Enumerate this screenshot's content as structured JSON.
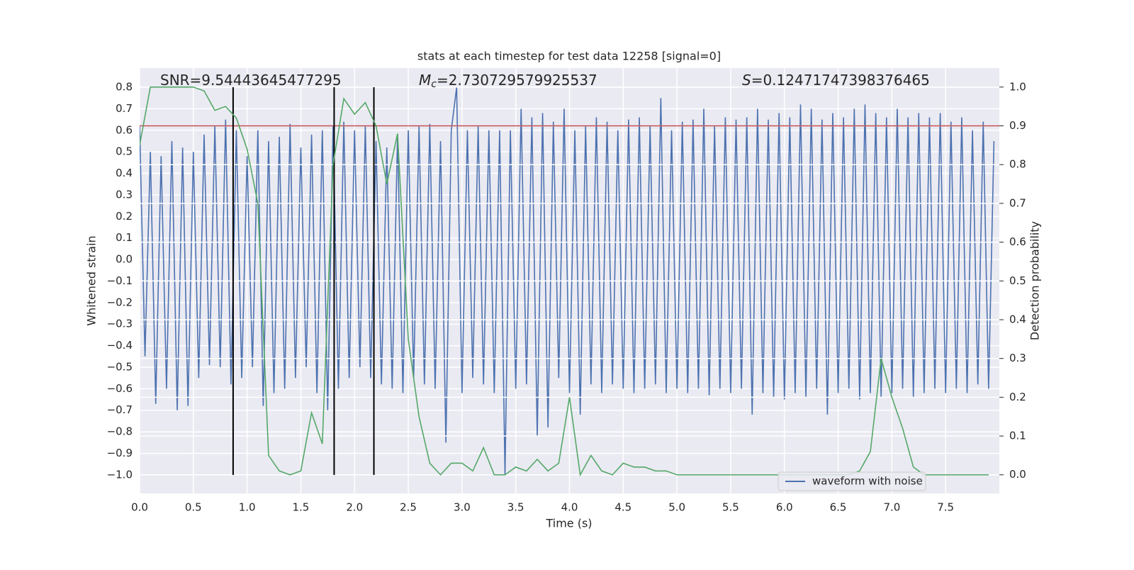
{
  "chart_data": {
    "type": "line",
    "title": "stats at each timestep for test data 12258 [signal=0]",
    "x_label": "Time (s)",
    "y_label": "Whitened strain",
    "y2_label": "Detection probability",
    "annotations": [
      {
        "text": "SNR=9.54443645477295"
      },
      {
        "symbol": "M",
        "subscript": "c",
        "text": "=2.730729579925537"
      },
      {
        "symbol": "S",
        "text": "=0.12471747398376465"
      }
    ],
    "xlim": [
      0,
      8.0
    ],
    "ylim": [
      -1.086,
      0.889
    ],
    "y2lim": [
      -0.048,
      1.049
    ],
    "xticks": [
      {
        "value": 0.0,
        "label": "0.0"
      },
      0.5,
      {
        "value": 1.0,
        "label": "1.0"
      },
      1.5,
      {
        "value": 2.0,
        "label": "2.0"
      },
      2.5,
      {
        "value": 3.0,
        "label": "3.0"
      },
      3.5,
      {
        "value": 4.0,
        "label": "4.0"
      },
      4.5,
      {
        "value": 5.0,
        "label": "5.0"
      },
      5.5,
      {
        "value": 6.0,
        "label": "6.0"
      },
      6.5,
      {
        "value": 7.0,
        "label": "7.0"
      },
      7.5
    ],
    "yticks": [
      {
        "value": -1.0,
        "label": "−1.0"
      },
      {
        "value": -0.9,
        "label": "−0.9"
      },
      {
        "value": -0.8,
        "label": "−0.8"
      },
      {
        "value": -0.7,
        "label": "−0.7"
      },
      {
        "value": -0.6,
        "label": "−0.6"
      },
      {
        "value": -0.5,
        "label": "−0.5"
      },
      {
        "value": -0.4,
        "label": "−0.4"
      },
      {
        "value": -0.3,
        "label": "−0.3"
      },
      {
        "value": -0.2,
        "label": "−0.2"
      },
      {
        "value": -0.1,
        "label": "−0.1"
      },
      {
        "value": 0.0,
        "label": "0.0"
      },
      0.1,
      0.2,
      0.3,
      0.4,
      0.5,
      0.6,
      0.7,
      0.8
    ],
    "y2ticks": [
      {
        "value": 0.0,
        "label": "0.0"
      },
      0.1,
      0.2,
      0.3,
      0.4,
      0.5,
      0.6,
      0.7,
      0.8,
      0.9,
      {
        "value": 1.0,
        "label": "1.0"
      }
    ],
    "grid": true,
    "legend": "lower right",
    "series": [
      {
        "name": "waveform with noise",
        "color": "#4c72b0",
        "x": [
          0,
          0.05,
          0.1,
          0.15,
          0.2,
          0.25,
          0.3,
          0.35,
          0.4,
          0.45,
          0.5,
          0.55,
          0.6,
          0.65,
          0.7,
          0.75,
          0.8,
          0.85,
          0.9,
          0.95,
          1,
          1.05,
          1.1,
          1.15,
          1.2,
          1.25,
          1.3,
          1.35,
          1.4,
          1.45,
          1.5,
          1.55,
          1.6,
          1.65,
          1.7,
          1.75,
          1.8,
          1.85,
          1.9,
          1.95,
          2,
          2.05,
          2.1,
          2.15,
          2.2,
          2.25,
          2.3,
          2.35,
          2.4,
          2.45,
          2.5,
          2.55,
          2.6,
          2.65,
          2.7,
          2.75,
          2.8,
          2.85,
          2.9,
          2.95,
          3,
          3.05,
          3.1,
          3.15,
          3.2,
          3.25,
          3.3,
          3.35,
          3.4,
          3.45,
          3.5,
          3.55,
          3.6,
          3.65,
          3.7,
          3.75,
          3.8,
          3.85,
          3.9,
          3.95,
          4,
          4.05,
          4.1,
          4.15,
          4.2,
          4.25,
          4.3,
          4.35,
          4.4,
          4.45,
          4.5,
          4.55,
          4.6,
          4.65,
          4.7,
          4.75,
          4.8,
          4.85,
          4.9,
          4.95,
          5,
          5.05,
          5.1,
          5.15,
          5.2,
          5.25,
          5.3,
          5.35,
          5.4,
          5.45,
          5.5,
          5.55,
          5.6,
          5.65,
          5.7,
          5.75,
          5.8,
          5.85,
          5.9,
          5.95,
          6,
          6.05,
          6.1,
          6.15,
          6.2,
          6.25,
          6.3,
          6.35,
          6.4,
          6.45,
          6.5,
          6.55,
          6.6,
          6.65,
          6.7,
          6.75,
          6.8,
          6.85,
          6.9,
          6.95,
          7,
          7.05,
          7.1,
          7.15,
          7.2,
          7.25,
          7.3,
          7.35,
          7.4,
          7.45,
          7.5,
          7.55,
          7.6,
          7.65,
          7.7,
          7.75,
          7.8,
          7.85,
          7.9,
          7.95
        ],
        "values": [
          0.62,
          -0.45,
          0.5,
          -0.67,
          0.48,
          -0.6,
          0.55,
          -0.7,
          0.52,
          -0.68,
          0.5,
          -0.55,
          0.58,
          -0.49,
          0.62,
          -0.5,
          0.65,
          -0.58,
          0.6,
          -0.55,
          0.48,
          -0.5,
          0.6,
          -0.68,
          0.55,
          -0.62,
          0.57,
          -0.6,
          0.63,
          -0.55,
          0.52,
          -0.5,
          0.58,
          -0.62,
          0.6,
          -0.7,
          0.62,
          -0.6,
          0.64,
          -0.55,
          0.6,
          -0.5,
          0.62,
          -0.55,
          0.55,
          -0.58,
          0.52,
          -0.6,
          0.58,
          -0.62,
          0.6,
          -0.55,
          0.62,
          -0.58,
          0.63,
          -0.6,
          0.55,
          -0.85,
          0.6,
          0.8,
          -0.62,
          0.6,
          -0.55,
          0.62,
          -0.58,
          0.6,
          -0.62,
          0.6,
          -1.0,
          0.6,
          -0.6,
          0.7,
          -0.58,
          0.66,
          -0.82,
          0.68,
          -0.78,
          0.64,
          -0.55,
          0.7,
          -0.62,
          0.6,
          -0.72,
          0.62,
          -0.58,
          0.66,
          -0.62,
          0.64,
          -0.58,
          0.6,
          -0.6,
          0.65,
          -0.62,
          0.66,
          -0.6,
          0.62,
          -0.58,
          0.75,
          -0.62,
          0.6,
          -0.6,
          0.64,
          -0.62,
          0.65,
          -0.6,
          0.7,
          -0.63,
          0.62,
          -0.6,
          0.66,
          -0.62,
          0.65,
          -0.6,
          0.66,
          -0.72,
          0.7,
          -0.62,
          0.65,
          -0.64,
          0.68,
          -0.65,
          0.66,
          -0.62,
          0.72,
          -0.64,
          0.7,
          -0.6,
          0.65,
          -0.72,
          0.68,
          -0.62,
          0.66,
          -0.6,
          0.7,
          -0.65,
          0.72,
          -0.62,
          0.68,
          -0.64,
          0.66,
          -0.62,
          0.7,
          -0.6,
          0.66,
          -0.64,
          0.68,
          -0.62,
          0.66,
          -0.6,
          0.68,
          -0.62,
          0.64,
          -0.6,
          0.66,
          -0.62,
          0.6,
          -0.58,
          0.64,
          -0.6,
          0.55
        ]
      },
      {
        "color": "#55a868",
        "axis": "y2",
        "x": [
          0,
          0.1,
          0.2,
          0.3,
          0.4,
          0.5,
          0.6,
          0.7,
          0.8,
          0.9,
          1,
          1.1,
          1.2,
          1.3,
          1.4,
          1.5,
          1.6,
          1.7,
          1.8,
          1.9,
          2,
          2.1,
          2.2,
          2.3,
          2.4,
          2.5,
          2.6,
          2.7,
          2.8,
          2.9,
          3,
          3.1,
          3.2,
          3.3,
          3.4,
          3.5,
          3.6,
          3.7,
          3.8,
          3.9,
          4,
          4.1,
          4.2,
          4.3,
          4.4,
          4.5,
          4.6,
          4.7,
          4.8,
          4.9,
          5,
          5.1,
          5.2,
          5.3,
          5.4,
          5.5,
          5.6,
          5.7,
          5.8,
          5.9,
          6,
          6.1,
          6.2,
          6.3,
          6.4,
          6.5,
          6.6,
          6.7,
          6.8,
          6.9,
          7,
          7.1,
          7.2,
          7.3,
          7.4,
          7.5,
          7.6,
          7.7,
          7.8,
          7.9
        ],
        "values": [
          0.85,
          1.0,
          1.0,
          1.0,
          1.0,
          1.0,
          0.99,
          0.94,
          0.95,
          0.92,
          0.84,
          0.7,
          0.05,
          0.01,
          0.0,
          0.01,
          0.16,
          0.08,
          0.8,
          0.97,
          0.93,
          0.96,
          0.9,
          0.75,
          0.88,
          0.35,
          0.15,
          0.03,
          0.0,
          0.03,
          0.03,
          0.01,
          0.07,
          0.0,
          0.0,
          0.02,
          0.01,
          0.04,
          0.01,
          0.03,
          0.2,
          0.0,
          0.05,
          0.01,
          0.0,
          0.03,
          0.02,
          0.02,
          0.01,
          0.01,
          0.0,
          0.0,
          0.0,
          0.0,
          0.0,
          0.0,
          0.0,
          0.0,
          0.0,
          0.0,
          0.0,
          0.0,
          0.0,
          0.0,
          0.0,
          0.0,
          0.0,
          0.01,
          0.06,
          0.3,
          0.2,
          0.12,
          0.02,
          0.0,
          0.0,
          0.0,
          0.0,
          0.0,
          0.0,
          0.0
        ]
      }
    ],
    "hlines": [
      {
        "value": 0.9,
        "axis": "y2",
        "color": "#c44e52"
      }
    ],
    "vlines": {
      "x": [
        0.87,
        1.81,
        2.18
      ],
      "ymin": -1.0,
      "ymax": 0.8,
      "color": "#000000"
    }
  }
}
